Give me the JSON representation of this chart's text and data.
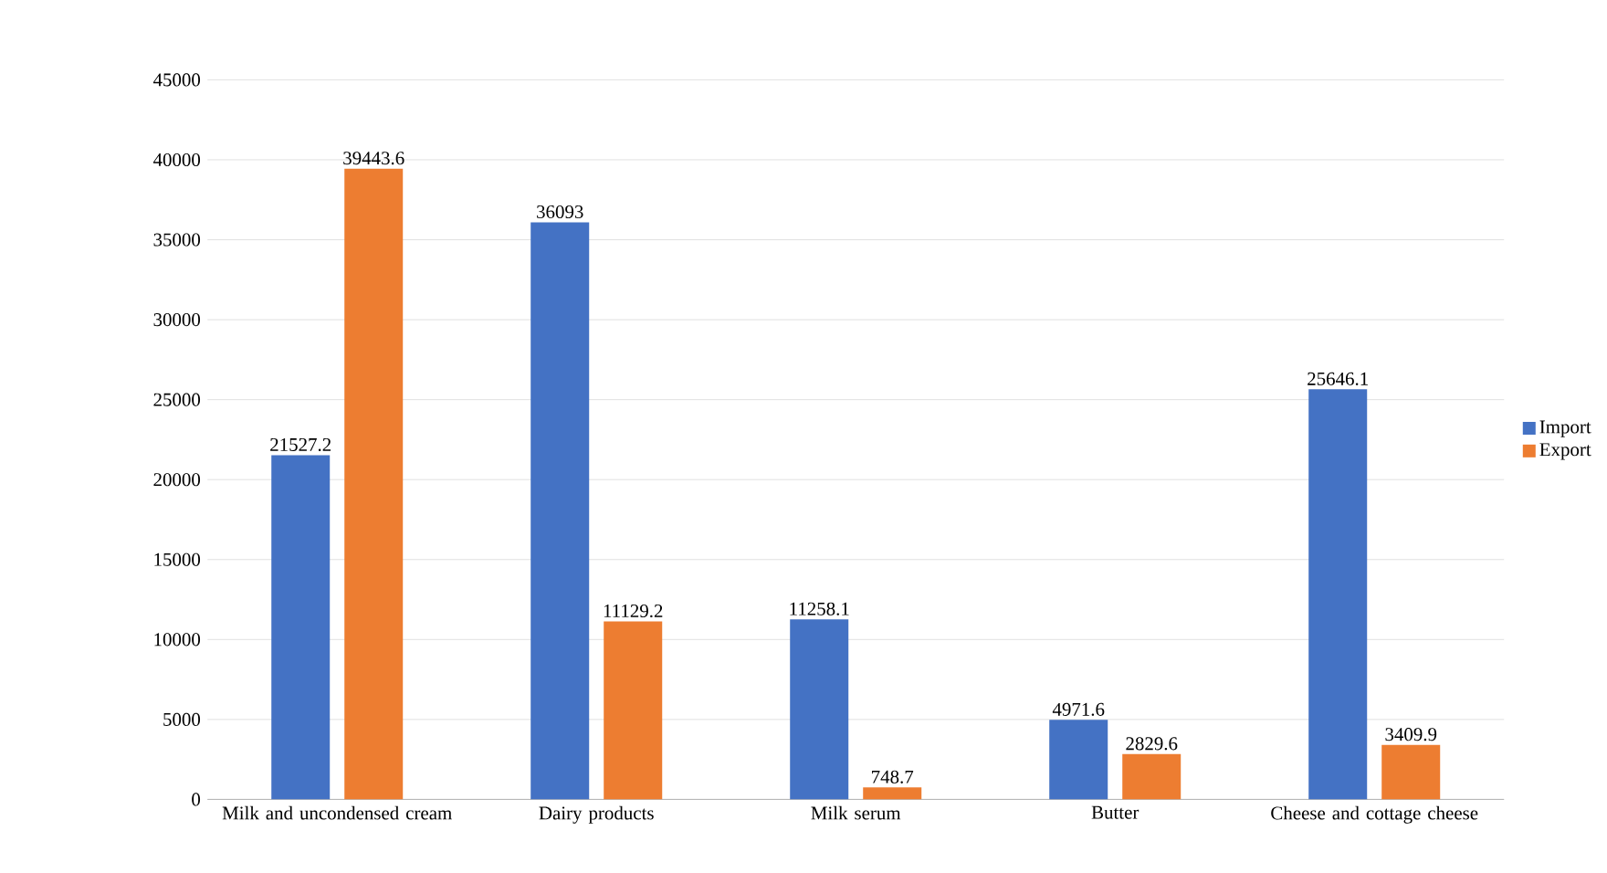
{
  "chart_data": {
    "type": "bar",
    "categories": [
      "Milk and uncondensed cream",
      "Dairy products",
      "Milk serum",
      "Butter",
      "Cheese and cottage cheese"
    ],
    "series": [
      {
        "name": "Import",
        "color": "#4472c4",
        "values": [
          21527.2,
          36093,
          11258.1,
          4971.6,
          25646.1
        ]
      },
      {
        "name": "Export",
        "color": "#ed7d31",
        "values": [
          39443.6,
          11129.2,
          748.7,
          2829.6,
          3409.9
        ]
      }
    ],
    "ylim": [
      0,
      45000
    ],
    "yticks": [
      0,
      5000,
      10000,
      15000,
      20000,
      25000,
      30000,
      35000,
      40000,
      45000
    ],
    "grid": "y",
    "legend": "right",
    "data_labels": true
  }
}
